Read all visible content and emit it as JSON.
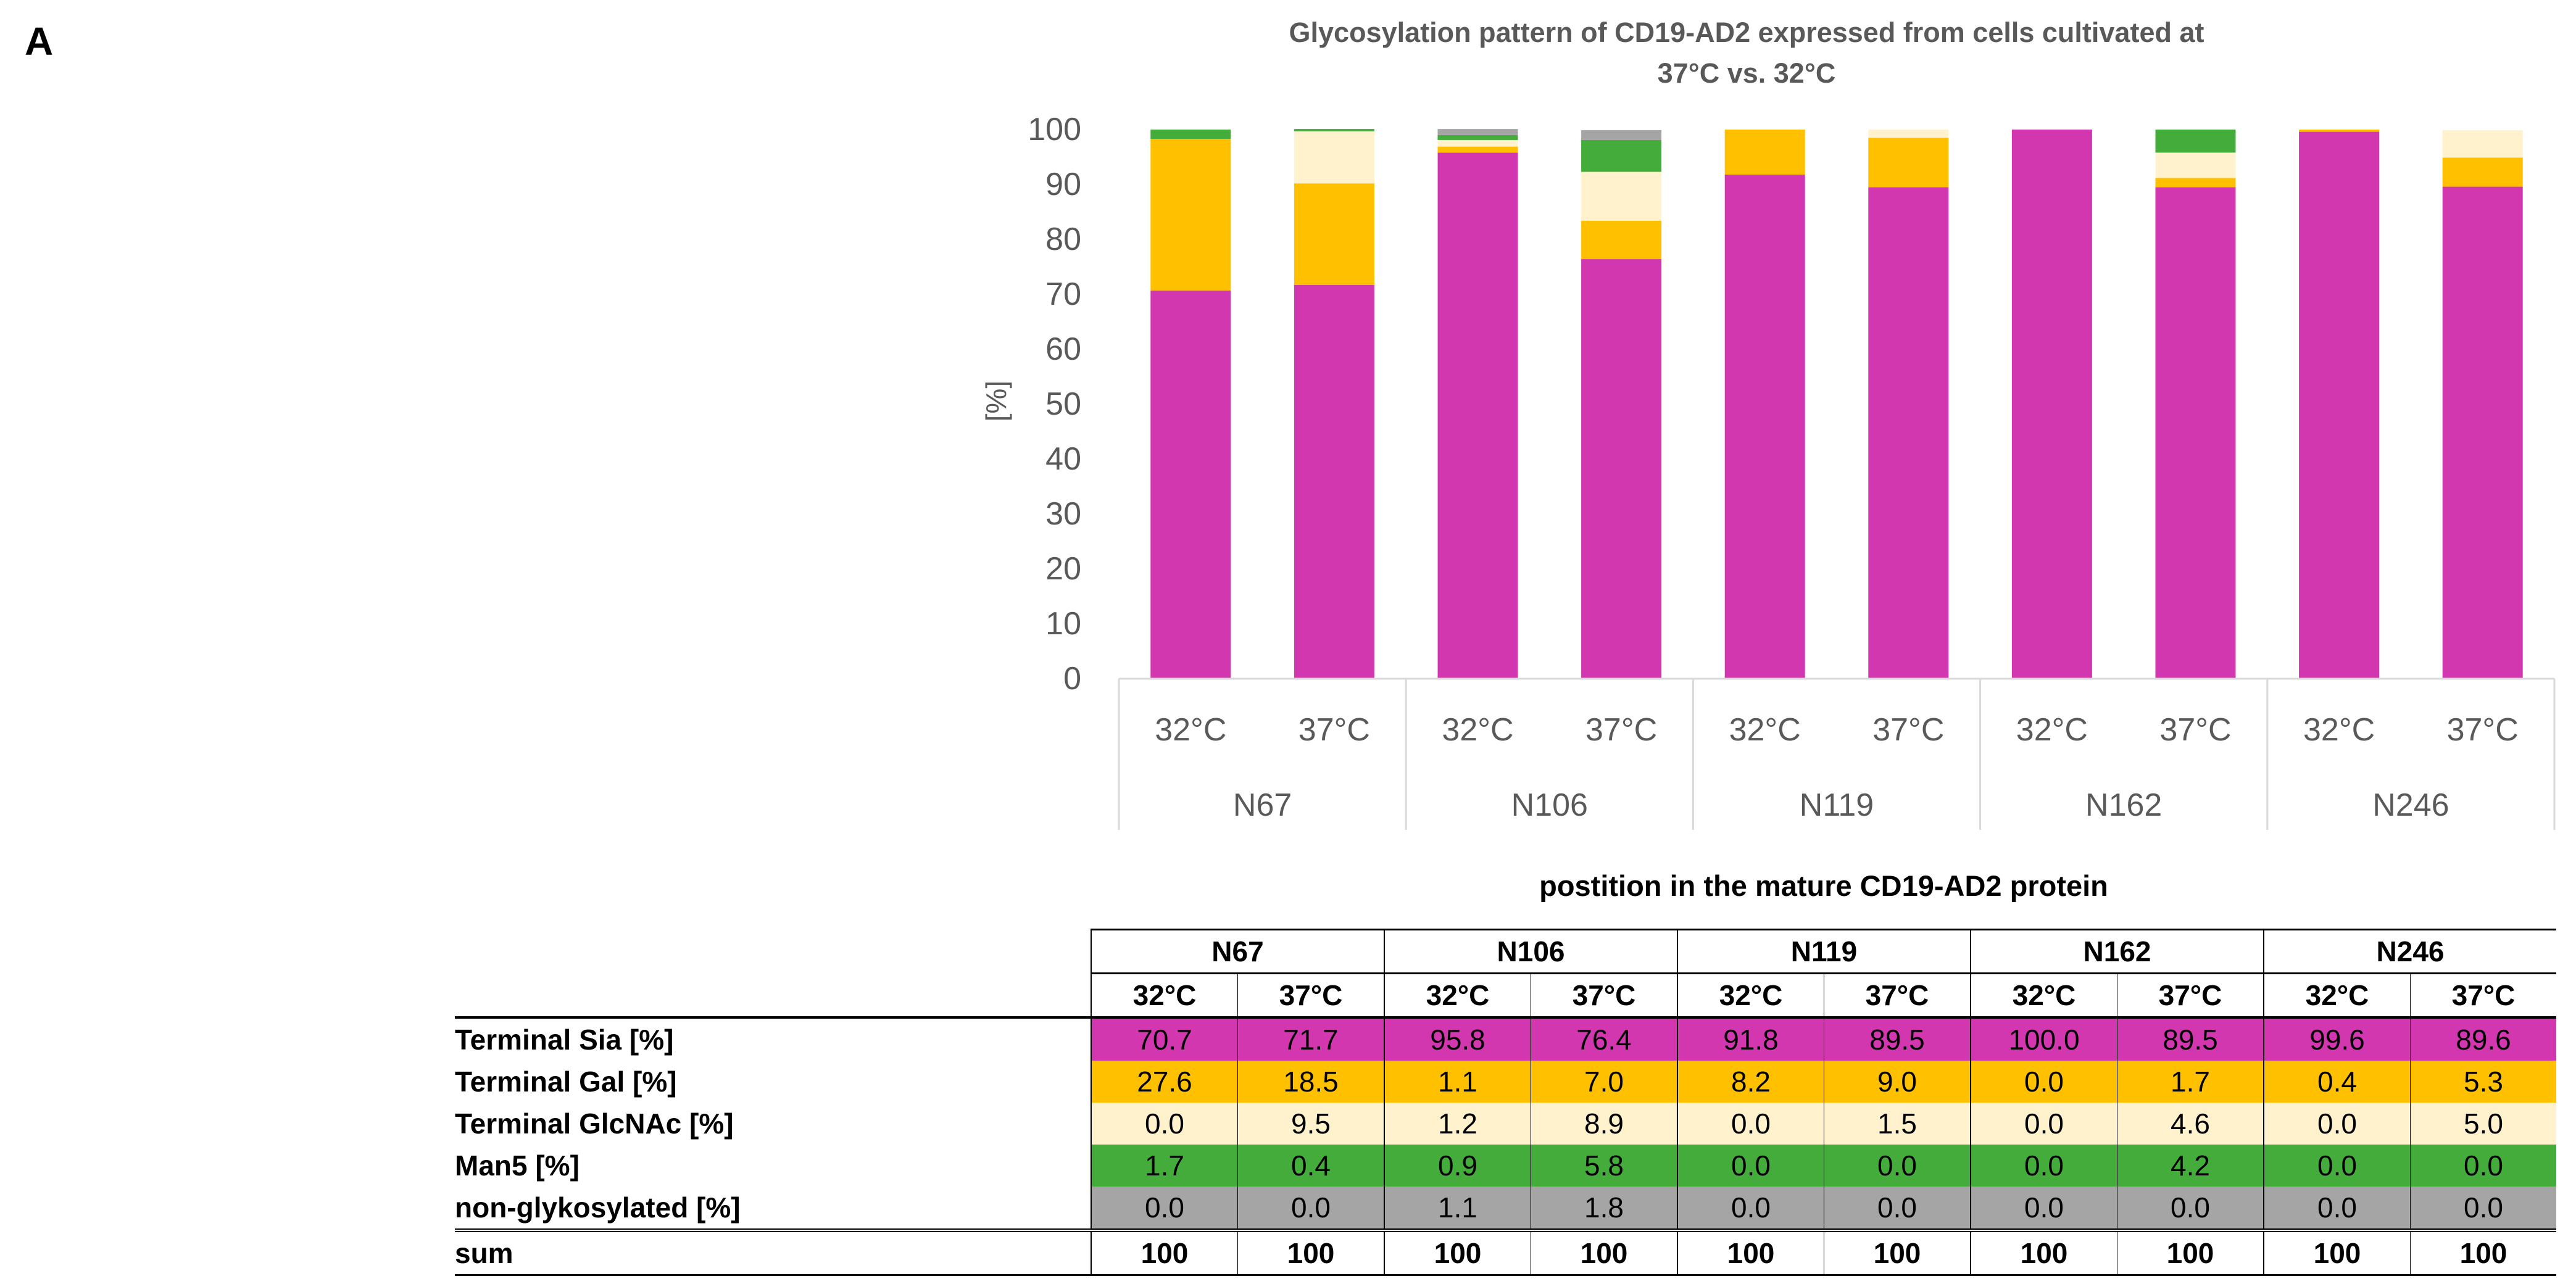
{
  "panel_label": "A",
  "chart_data": {
    "type": "bar",
    "stacked": true,
    "title": "Glycosylation pattern of CD19-AD2 expressed from cells cultivated at 37°C vs. 32°C",
    "title_lines": [
      "Glycosylation pattern of CD19-AD2 expressed from cells cultivated at",
      "37°C vs. 32°C"
    ],
    "ylabel": "[%]",
    "xlabel": "postition in the mature CD19-AD2 protein",
    "ylim": [
      0,
      100
    ],
    "yticks": [
      "0",
      "10",
      "20",
      "30",
      "40",
      "50",
      "60",
      "70",
      "80",
      "90",
      "100"
    ],
    "groups": [
      "N67",
      "N106",
      "N119",
      "N162",
      "N246"
    ],
    "conditions": [
      "32°C",
      "37°C"
    ],
    "categories": [
      "32°C",
      "37°C",
      "32°C",
      "37°C",
      "32°C",
      "37°C",
      "32°C",
      "37°C",
      "32°C",
      "37°C"
    ],
    "series": [
      {
        "name": "Terminal Sia [%]",
        "color": "#d237b0",
        "values": [
          70.7,
          71.7,
          95.8,
          76.4,
          91.8,
          89.5,
          100.0,
          89.5,
          99.6,
          89.6
        ]
      },
      {
        "name": "Terminal Gal [%]",
        "color": "#ffc000",
        "values": [
          27.6,
          18.5,
          1.1,
          7.0,
          8.2,
          9.0,
          0.0,
          1.7,
          0.4,
          5.3
        ]
      },
      {
        "name": "Terminal GlcNAc [%]",
        "color": "#fff2cc",
        "values": [
          0.0,
          9.5,
          1.2,
          8.9,
          0.0,
          1.5,
          0.0,
          4.6,
          0.0,
          5.0
        ]
      },
      {
        "name": "Man5 [%]",
        "color": "#43ac3a",
        "values": [
          1.7,
          0.4,
          0.9,
          5.8,
          0.0,
          0.0,
          0.0,
          4.2,
          0.0,
          0.0
        ]
      },
      {
        "name": "non-glykosylated [%]",
        "color": "#a5a5a5",
        "values": [
          0.0,
          0.0,
          1.1,
          1.8,
          0.0,
          0.0,
          0.0,
          0.0,
          0.0,
          0.0
        ]
      }
    ]
  },
  "table": {
    "caption": "postition in the mature CD19-AD2 protein",
    "rows": [
      {
        "label": "Terminal Sia [%]",
        "color": "#d237b0",
        "values": [
          "70.7",
          "71.7",
          "95.8",
          "76.4",
          "91.8",
          "89.5",
          "100.0",
          "89.5",
          "99.6",
          "89.6"
        ]
      },
      {
        "label": "Terminal Gal [%]",
        "color": "#ffc000",
        "values": [
          "27.6",
          "18.5",
          "1.1",
          "7.0",
          "8.2",
          "9.0",
          "0.0",
          "1.7",
          "0.4",
          "5.3"
        ]
      },
      {
        "label": "Terminal GlcNAc [%]",
        "color": "#fff2cc",
        "values": [
          "0.0",
          "9.5",
          "1.2",
          "8.9",
          "0.0",
          "1.5",
          "0.0",
          "4.6",
          "0.0",
          "5.0"
        ]
      },
      {
        "label": "Man5 [%]",
        "color": "#43ac3a",
        "values": [
          "1.7",
          "0.4",
          "0.9",
          "5.8",
          "0.0",
          "0.0",
          "0.0",
          "4.2",
          "0.0",
          "0.0"
        ]
      },
      {
        "label": "non-glykosylated [%]",
        "color": "#a5a5a5",
        "values": [
          "0.0",
          "0.0",
          "1.1",
          "1.8",
          "0.0",
          "0.0",
          "0.0",
          "0.0",
          "0.0",
          "0.0"
        ]
      }
    ],
    "sum_row": {
      "label": "sum",
      "values": [
        "100",
        "100",
        "100",
        "100",
        "100",
        "100",
        "100",
        "100",
        "100",
        "100"
      ]
    }
  }
}
